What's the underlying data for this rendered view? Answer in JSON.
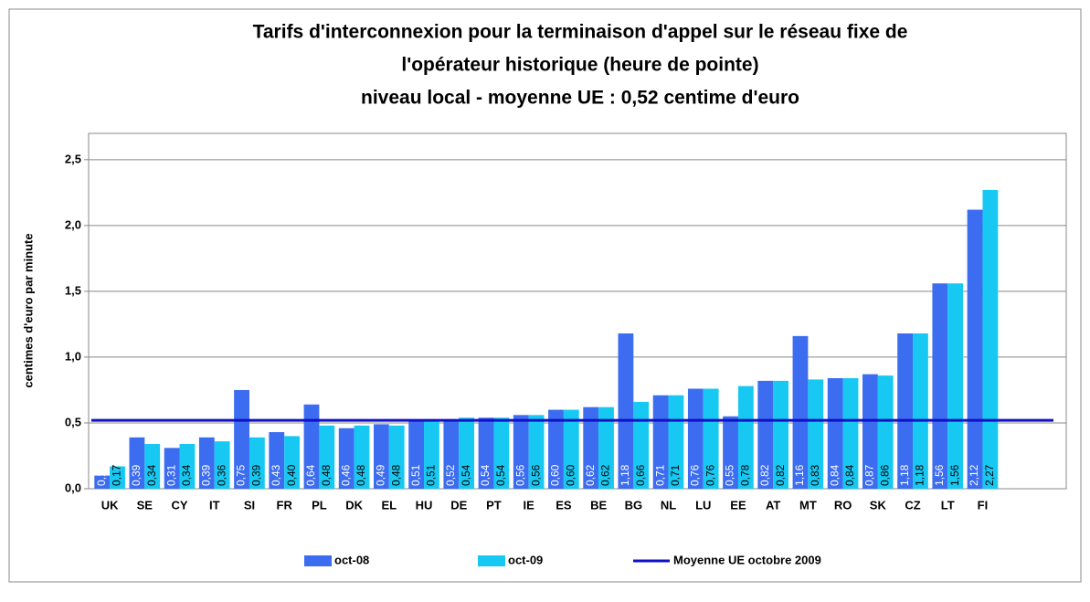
{
  "chart_data": {
    "type": "bar",
    "title": [
      "Tarifs d'interconnexion pour la terminaison d'appel sur le réseau fixe de",
      "l'opérateur historique (heure de pointe)",
      "niveau local - moyenne UE : 0,52 centime d'euro"
    ],
    "y_label": "centimes d'euro par minute",
    "categories": [
      "UK",
      "SE",
      "CY",
      "IT",
      "SI",
      "FR",
      "PL",
      "DK",
      "EL",
      "HU",
      "DE",
      "PT",
      "IE",
      "ES",
      "BE",
      "BG",
      "NL",
      "LU",
      "EE",
      "AT",
      "MT",
      "RO",
      "SK",
      "CZ",
      "LT",
      "FI"
    ],
    "series": [
      {
        "name": "oct-08",
        "color": "#3c6cf0",
        "values": [
          0.1,
          0.39,
          0.31,
          0.39,
          0.75,
          0.43,
          0.64,
          0.46,
          0.49,
          0.51,
          0.52,
          0.54,
          0.56,
          0.6,
          0.62,
          1.18,
          0.71,
          0.76,
          0.55,
          0.82,
          1.16,
          0.84,
          0.87,
          1.18,
          1.56,
          2.12
        ],
        "value_labels": [
          "0,1",
          "0,39",
          "0,31",
          "0,39",
          "0,75",
          "0,43",
          "0,64",
          "0,46",
          "0,49",
          "0,51",
          "0,52",
          "0,54",
          "0,56",
          "0,60",
          "0,62",
          "1,18",
          "0,71",
          "0,76",
          "0,55",
          "0,82",
          "1,16",
          "0,84",
          "0,87",
          "1,18",
          "1,56",
          "2,12"
        ]
      },
      {
        "name": "oct-09",
        "color": "#17c9f2",
        "values": [
          0.17,
          0.34,
          0.34,
          0.36,
          0.39,
          0.4,
          0.48,
          0.48,
          0.48,
          0.51,
          0.54,
          0.54,
          0.56,
          0.6,
          0.62,
          0.66,
          0.71,
          0.76,
          0.78,
          0.82,
          0.83,
          0.84,
          0.86,
          1.18,
          1.56,
          2.27
        ],
        "value_labels": [
          "0,17",
          "0,34",
          "0,34",
          "0,36",
          "0,39",
          "0,40",
          "0,48",
          "0,48",
          "0,48",
          "0,51",
          "0,54",
          "0,54",
          "0,56",
          "0,60",
          "0,62",
          "0,66",
          "0,71",
          "0,76",
          "0,78",
          "0,82",
          "0,83",
          "0,84",
          "0,86",
          "1,18",
          "1,56",
          "2,27"
        ]
      }
    ],
    "reference_line": {
      "name": "Moyenne UE octobre 2009",
      "value": 0.52,
      "color": "#1010c8"
    },
    "ylim": [
      0,
      2.7
    ],
    "yticks": [
      {
        "value": 0,
        "label": "0,0"
      },
      {
        "value": 0.5,
        "label": "0,5"
      },
      {
        "value": 1,
        "label": "1,0"
      },
      {
        "value": 1.5,
        "label": "1,5"
      },
      {
        "value": 2,
        "label": "2,0"
      },
      {
        "value": 2.5,
        "label": "2,5"
      }
    ],
    "grid": true
  }
}
